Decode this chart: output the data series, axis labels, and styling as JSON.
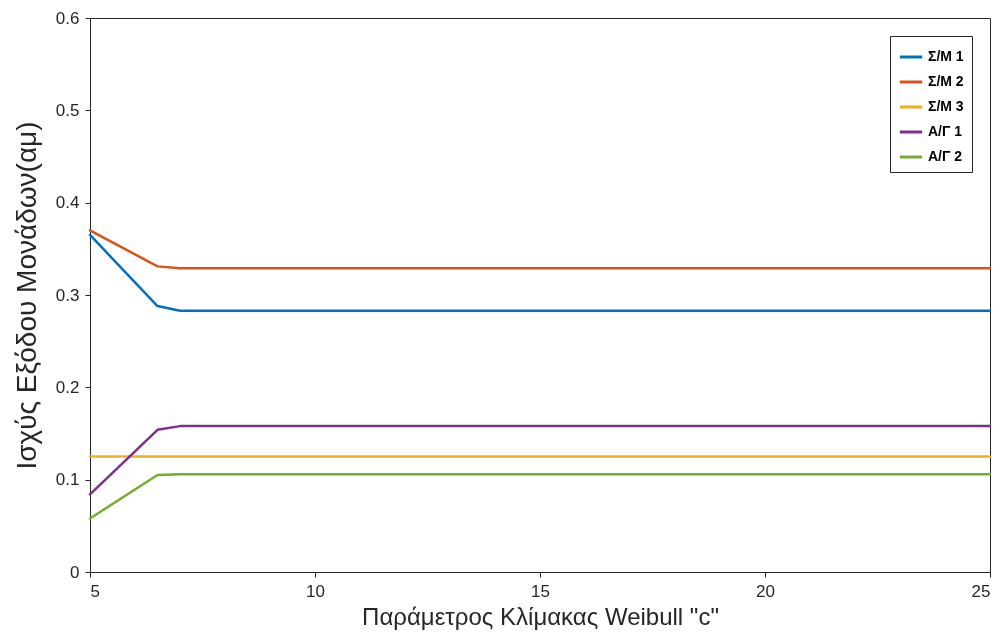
{
  "chart_data": {
    "type": "line",
    "xlabel": "Παράμετρος Κλίμακας Weibull \"c\"",
    "ylabel": "Ισχύς Εξόδου Μονάδων(αμ)",
    "x": [
      5,
      6.5,
      7,
      25
    ],
    "series": [
      {
        "name": "Σ/Μ 1",
        "color": "#0072bd",
        "values": [
          0.365,
          0.288,
          0.283,
          0.283
        ]
      },
      {
        "name": "Σ/Μ 2",
        "color": "#d95319",
        "values": [
          0.37,
          0.331,
          0.329,
          0.329
        ]
      },
      {
        "name": "Σ/Μ 3",
        "color": "#edb120",
        "values": [
          0.125,
          0.125,
          0.125,
          0.125
        ]
      },
      {
        "name": "Α/Γ 1",
        "color": "#7e2f8e",
        "values": [
          0.084,
          0.154,
          0.158,
          0.158
        ]
      },
      {
        "name": "Α/Γ 2",
        "color": "#77ac30",
        "values": [
          0.058,
          0.105,
          0.106,
          0.106
        ]
      }
    ],
    "xlim": [
      5,
      25
    ],
    "xticks": [
      5,
      10,
      15,
      20,
      25
    ],
    "ylim": [
      0,
      0.6
    ],
    "yticks": [
      0,
      0.1,
      0.2,
      0.3,
      0.4,
      0.5,
      0.6
    ],
    "grid": false,
    "legend": "top right",
    "marker": "none",
    "line_style": "solid"
  }
}
